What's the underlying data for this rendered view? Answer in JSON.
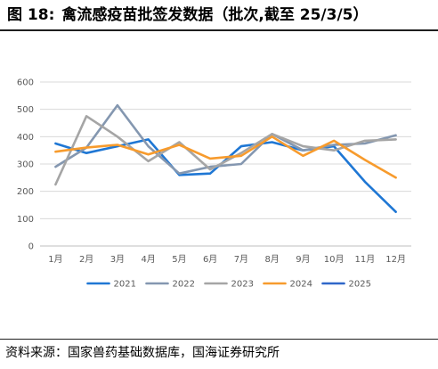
{
  "header": {
    "figure_number": "图 18:",
    "title": "禽流感疫苗批签发数据（批次,截至 25/3/5）"
  },
  "footer": {
    "source": "资料来源：国家兽药基础数据库，国海证券研究所"
  },
  "chart_data": {
    "type": "line",
    "title": "禽流感疫苗批签发数据（批次,截至 25/3/5）",
    "xlabel": "",
    "ylabel": "",
    "categories": [
      "1月",
      "2月",
      "3月",
      "4月",
      "5月",
      "6月",
      "7月",
      "8月",
      "9月",
      "10月",
      "11月",
      "12月"
    ],
    "ylim": [
      0,
      600
    ],
    "yticks": [
      0,
      100,
      200,
      300,
      400,
      500,
      600
    ],
    "grid": "horizontal",
    "legend_position": "bottom",
    "series": [
      {
        "name": "2021",
        "color": "#1f77d4",
        "values": [
          375,
          340,
          365,
          390,
          260,
          265,
          365,
          380,
          350,
          365,
          235,
          125
        ]
      },
      {
        "name": "2022",
        "color": "#8497b0",
        "values": [
          290,
          360,
          515,
          365,
          265,
          290,
          300,
          410,
          350,
          370,
          375,
          405
        ]
      },
      {
        "name": "2023",
        "color": "#a5a5a5",
        "values": [
          225,
          475,
          400,
          310,
          380,
          280,
          340,
          410,
          365,
          350,
          385,
          390
        ]
      },
      {
        "name": "2024",
        "color": "#f79b2d",
        "values": [
          345,
          360,
          370,
          335,
          370,
          320,
          330,
          400,
          330,
          385,
          315,
          250
        ]
      },
      {
        "name": "2025",
        "color": "#2f67c9",
        "values": [
          null,
          null,
          null,
          null,
          null,
          null,
          null,
          null,
          null,
          null,
          null,
          null
        ]
      }
    ]
  }
}
